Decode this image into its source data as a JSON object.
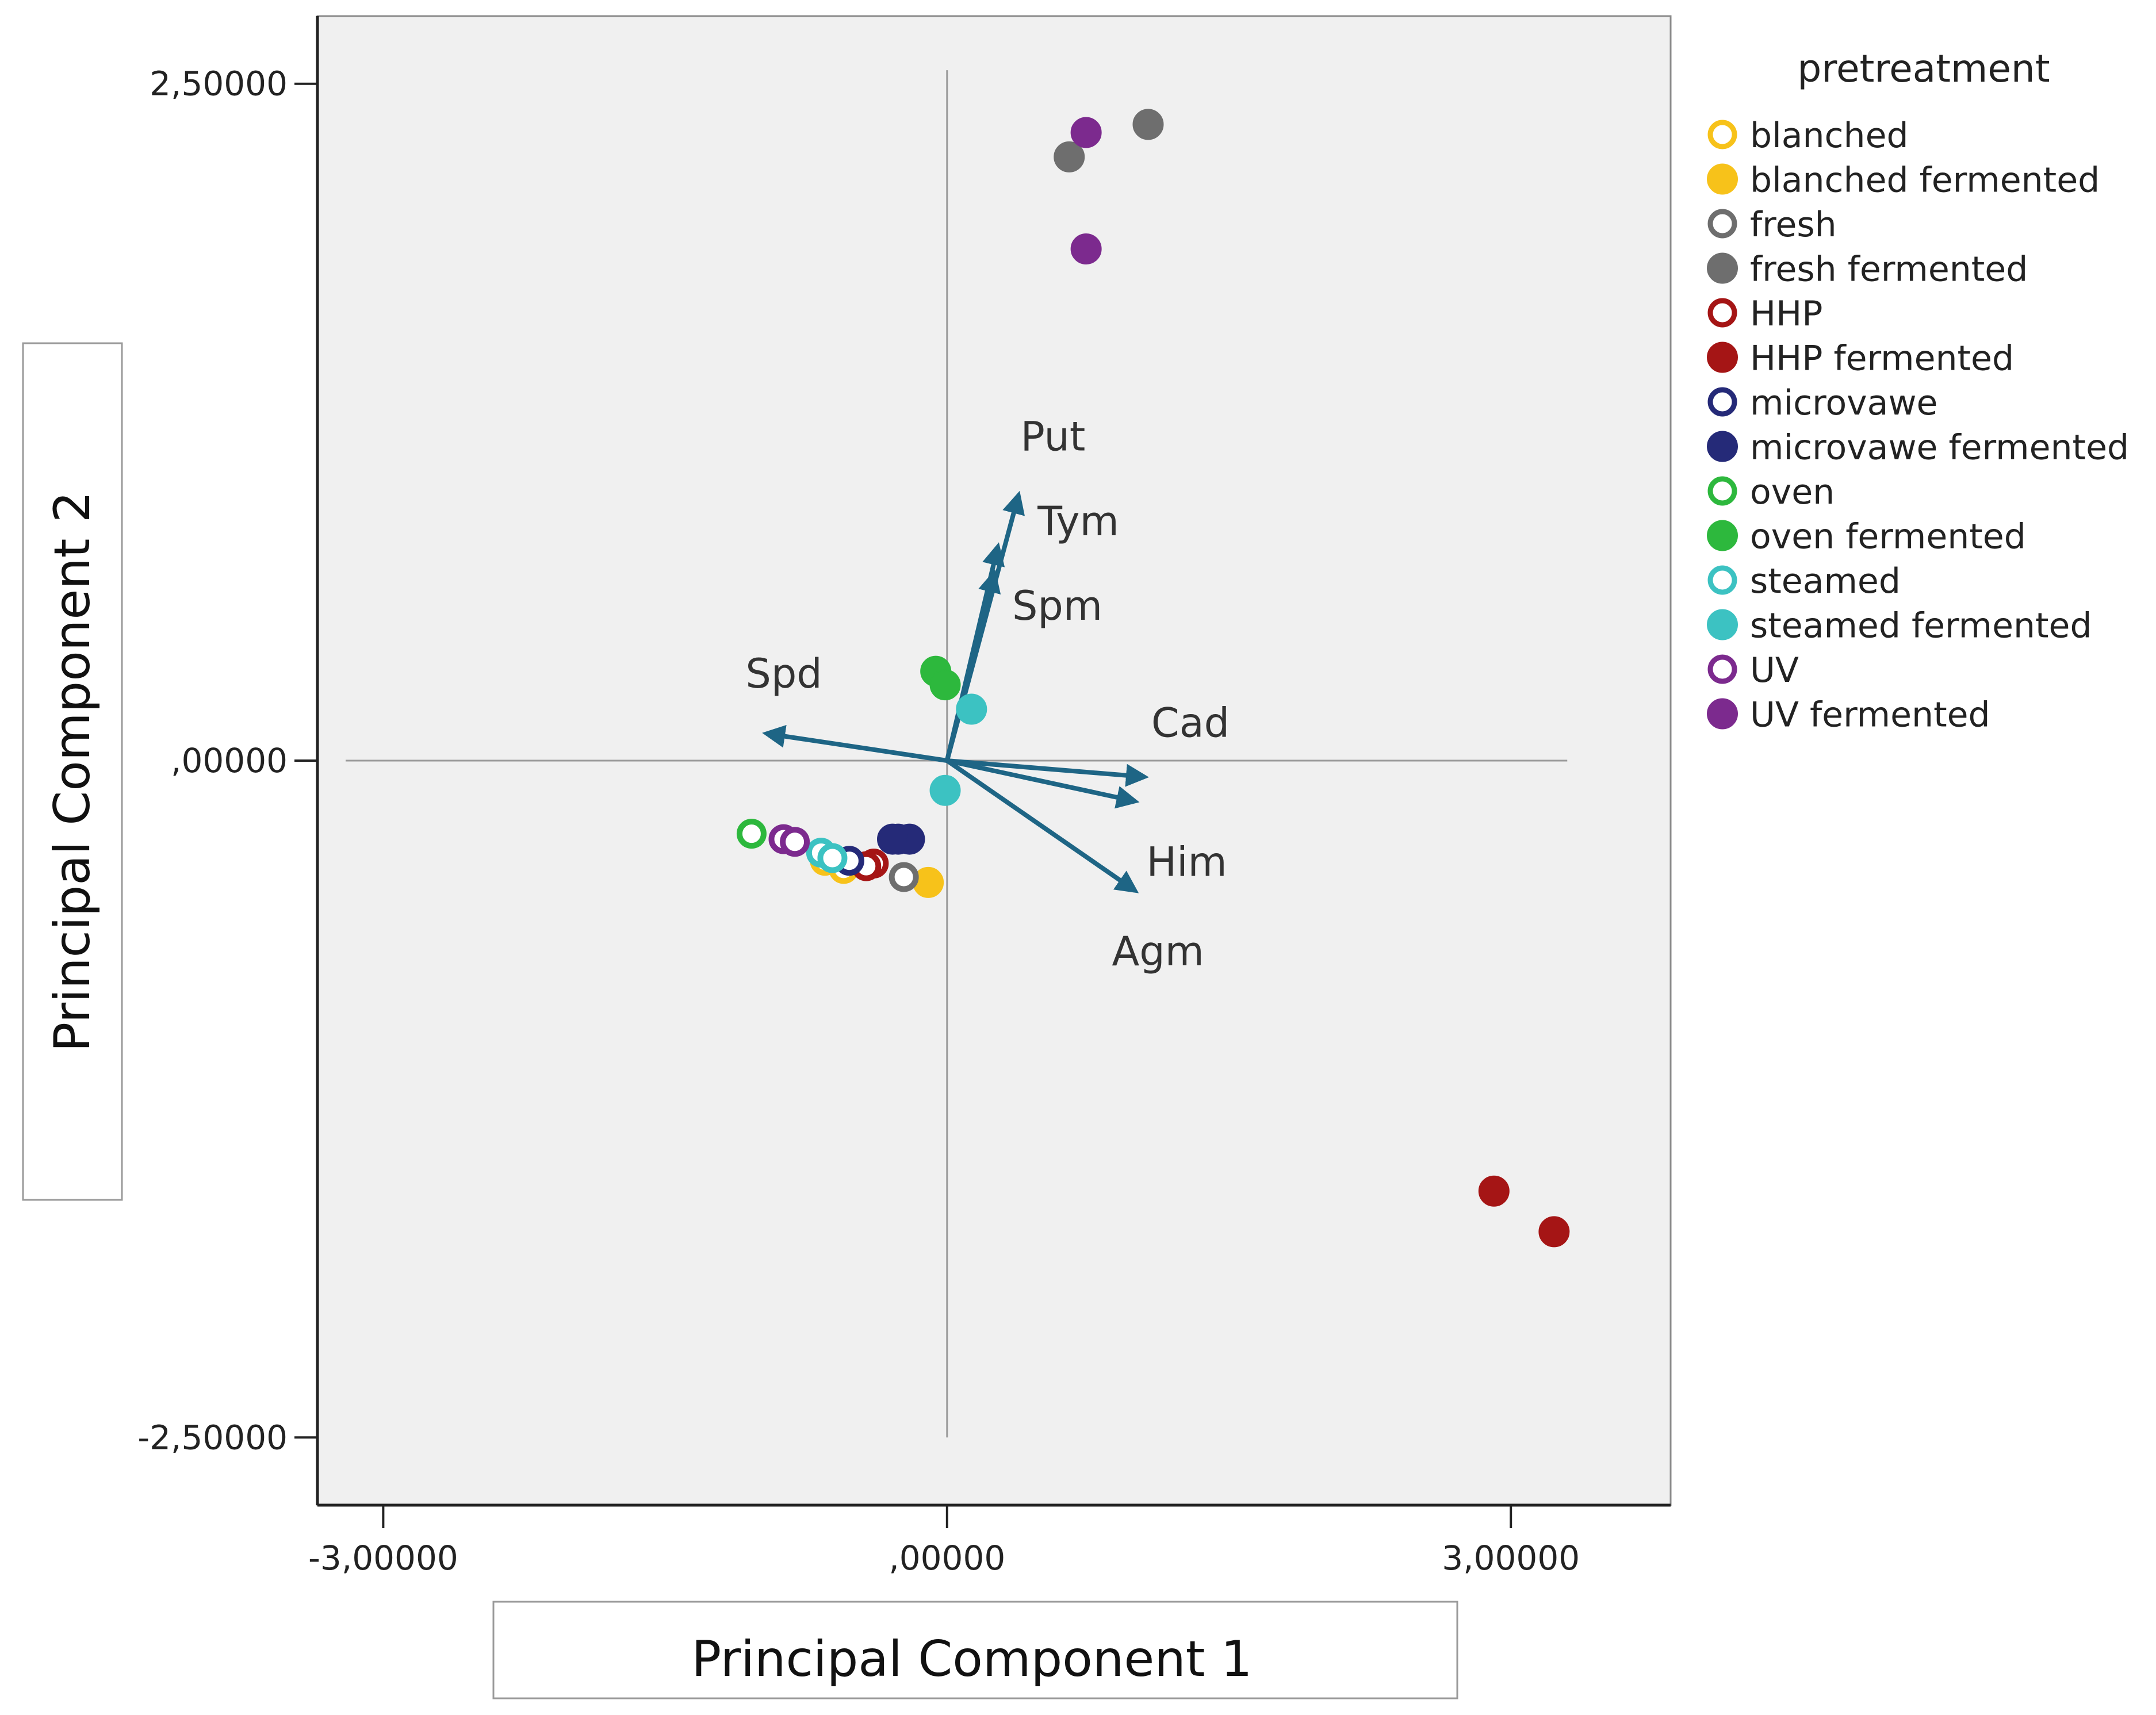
{
  "chart_data": {
    "type": "scatter",
    "title": "",
    "xlabel": "Principal Component 1",
    "ylabel": "Principal Component 2",
    "xlim": [
      -3.35,
      3.85
    ],
    "ylim": [
      -2.75,
      2.75
    ],
    "xticks": [
      {
        "value": -3,
        "label": "-3,00000"
      },
      {
        "value": 0,
        "label": ",00000"
      },
      {
        "value": 3,
        "label": "3,00000"
      }
    ],
    "yticks": [
      {
        "value": 2.5,
        "label": "2,50000"
      },
      {
        "value": 0,
        "label": ",00000"
      },
      {
        "value": -2.5,
        "label": "-2,50000"
      }
    ],
    "reference_lines": {
      "x": 0,
      "y": 0
    },
    "legend": {
      "title": "pretreatment",
      "placement": "right",
      "entries": [
        {
          "label": "blanched",
          "color": "#F7C21A",
          "filled": false
        },
        {
          "label": "blanched fermented",
          "color": "#F7C21A",
          "filled": true
        },
        {
          "label": "fresh",
          "color": "#6E6E6E",
          "filled": false
        },
        {
          "label": "fresh fermented",
          "color": "#6E6E6E",
          "filled": true
        },
        {
          "label": "HHP",
          "color": "#A51515",
          "filled": false
        },
        {
          "label": "HHP fermented",
          "color": "#A51515",
          "filled": true
        },
        {
          "label": "microvawe",
          "color": "#252A78",
          "filled": false
        },
        {
          "label": "microvawe fermented",
          "color": "#252A78",
          "filled": true
        },
        {
          "label": "oven",
          "color": "#2DB83D",
          "filled": false
        },
        {
          "label": "oven fermented",
          "color": "#2DB83D",
          "filled": true
        },
        {
          "label": "steamed",
          "color": "#3CC2C2",
          "filled": false
        },
        {
          "label": "steamed fermented",
          "color": "#3CC2C2",
          "filled": true
        },
        {
          "label": "UV",
          "color": "#7C2A8E",
          "filled": false
        },
        {
          "label": "UV fermented",
          "color": "#7C2A8E",
          "filled": true
        }
      ]
    },
    "series": [
      {
        "name": "blanched",
        "color": "#F7C21A",
        "filled": false,
        "points": [
          [
            -0.65,
            -0.37
          ],
          [
            -0.55,
            -0.4
          ]
        ]
      },
      {
        "name": "blanched fermented",
        "color": "#F7C21A",
        "filled": true,
        "points": [
          [
            -0.1,
            -0.45
          ]
        ]
      },
      {
        "name": "fresh",
        "color": "#6E6E6E",
        "filled": false,
        "points": [
          [
            -0.23,
            -0.43
          ]
        ]
      },
      {
        "name": "fresh fermented",
        "color": "#6E6E6E",
        "filled": true,
        "points": [
          [
            1.07,
            2.35
          ],
          [
            0.65,
            2.23
          ]
        ]
      },
      {
        "name": "HHP",
        "color": "#A51515",
        "filled": false,
        "points": [
          [
            -0.39,
            -0.38
          ],
          [
            -0.43,
            -0.39
          ]
        ]
      },
      {
        "name": "HHP fermented",
        "color": "#A51515",
        "filled": true,
        "points": [
          [
            2.91,
            -1.59
          ],
          [
            3.23,
            -1.74
          ]
        ]
      },
      {
        "name": "microvawe",
        "color": "#252A78",
        "filled": false,
        "points": [
          [
            -0.52,
            -0.37
          ]
        ]
      },
      {
        "name": "microvawe fermented",
        "color": "#252A78",
        "filled": true,
        "points": [
          [
            -0.26,
            -0.29
          ],
          [
            -0.2,
            -0.29
          ],
          [
            -0.29,
            -0.29
          ]
        ]
      },
      {
        "name": "oven",
        "color": "#2DB83D",
        "filled": false,
        "points": [
          [
            -1.04,
            -0.27
          ]
        ]
      },
      {
        "name": "oven fermented",
        "color": "#2DB83D",
        "filled": true,
        "points": [
          [
            -0.06,
            0.33
          ],
          [
            -0.01,
            0.28
          ]
        ]
      },
      {
        "name": "steamed",
        "color": "#3CC2C2",
        "filled": false,
        "points": [
          [
            -0.67,
            -0.34
          ],
          [
            -0.61,
            -0.36
          ]
        ]
      },
      {
        "name": "steamed fermented",
        "color": "#3CC2C2",
        "filled": true,
        "points": [
          [
            0.13,
            0.19
          ],
          [
            -0.01,
            -0.11
          ]
        ]
      },
      {
        "name": "UV",
        "color": "#7C2A8E",
        "filled": false,
        "points": [
          [
            -0.87,
            -0.29
          ],
          [
            -0.81,
            -0.3
          ]
        ]
      },
      {
        "name": "UV fermented",
        "color": "#7C2A8E",
        "filled": true,
        "points": [
          [
            0.74,
            2.32
          ],
          [
            0.74,
            1.89
          ]
        ]
      }
    ],
    "loading_vectors": {
      "color": "#1E6585",
      "vectors": [
        {
          "label": "Put",
          "x": 0.38,
          "y": 0.98
        },
        {
          "label": "Tym",
          "x": 0.27,
          "y": 0.79
        },
        {
          "label": "Spm",
          "x": 0.25,
          "y": 0.69
        },
        {
          "label": "Spd",
          "x": -0.96,
          "y": 0.1
        },
        {
          "label": "Cad",
          "x": 1.05,
          "y": -0.06
        },
        {
          "label": "Him",
          "x": 1.0,
          "y": -0.15
        },
        {
          "label": "Agm",
          "x": 1.0,
          "y": -0.48
        }
      ]
    }
  }
}
